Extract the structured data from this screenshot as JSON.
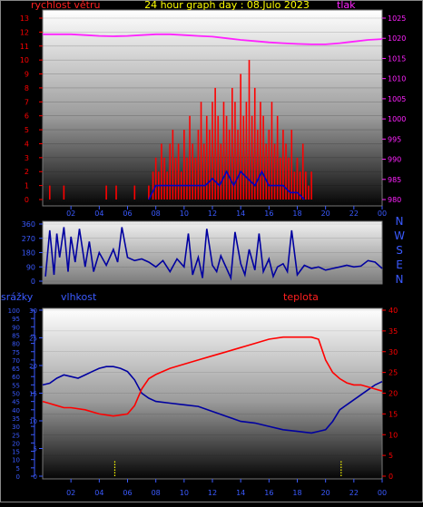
{
  "colors": {
    "background": "#000000",
    "frame": "#888888",
    "title": "#ffff00",
    "wind": "#ff0000",
    "gust": "#ff0000",
    "pressure": "#ff22ff",
    "direction_line": "#0000a0",
    "dir_labels": "#3a5aff",
    "humidity": "#0000a0",
    "temperature": "#ff0000",
    "rain_axis": "#3a5aff",
    "hum_axis": "#3a5aff",
    "rain_marks": "#ffff00"
  },
  "chart_data": [
    {
      "type": "line",
      "id": "wind_pressure",
      "title": "24 hour graph day : 08.Julo 2023",
      "left_axis_label": "rychlost větru",
      "right_axis_label": "tlak",
      "x_ticks": [
        "02",
        "04",
        "06",
        "08",
        "10",
        "12",
        "14",
        "16",
        "18",
        "20",
        "22",
        "00"
      ],
      "x_range_hours": [
        0,
        24
      ],
      "ylim_left": [
        0,
        13
      ],
      "left_ticks": [
        0,
        1,
        2,
        3,
        4,
        5,
        6,
        7,
        8,
        9,
        10,
        11,
        12,
        13
      ],
      "ylim_right": [
        980,
        1025
      ],
      "right_ticks": [
        980,
        985,
        990,
        995,
        1000,
        1005,
        1010,
        1015,
        1020,
        1025
      ],
      "series": [
        {
          "axis": "left",
          "style": "gust-bars",
          "x": [
            0.5,
            1.5,
            4.5,
            5.2,
            6.5,
            7.5,
            7.8,
            8.0,
            8.2,
            8.4,
            8.6,
            8.8,
            9.0,
            9.2,
            9.4,
            9.6,
            9.8,
            10.0,
            10.2,
            10.4,
            10.6,
            10.8,
            11.0,
            11.2,
            11.4,
            11.6,
            11.8,
            12.0,
            12.2,
            12.4,
            12.6,
            12.8,
            13.0,
            13.2,
            13.4,
            13.6,
            13.8,
            14.0,
            14.2,
            14.4,
            14.6,
            14.8,
            15.0,
            15.2,
            15.4,
            15.6,
            15.8,
            16.0,
            16.2,
            16.4,
            16.6,
            16.8,
            17.0,
            17.2,
            17.4,
            17.6,
            17.8,
            18.0,
            18.2,
            18.4,
            18.6,
            18.8,
            19.0
          ],
          "values": [
            1,
            1,
            1,
            1,
            1,
            1,
            2,
            3,
            2,
            4,
            3,
            2,
            4,
            5,
            3,
            4,
            2,
            5,
            3,
            6,
            4,
            3,
            5,
            7,
            4,
            6,
            5,
            7,
            8,
            6,
            4,
            7,
            6,
            5,
            8,
            7,
            5,
            9,
            6,
            7,
            10,
            6,
            8,
            5,
            7,
            6,
            4,
            5,
            7,
            4,
            6,
            3,
            5,
            4,
            3,
            5,
            2,
            3,
            2,
            4,
            2,
            1,
            2
          ]
        },
        {
          "axis": "left",
          "style": "speed-line",
          "x": [
            7.5,
            8.0,
            9.0,
            10.0,
            11.0,
            11.5,
            12.0,
            12.5,
            13.0,
            13.5,
            14.0,
            14.5,
            15.0,
            15.5,
            16.0,
            16.5,
            17.0,
            17.5,
            18.0,
            18.5
          ],
          "values": [
            0,
            1,
            1,
            1,
            1,
            1,
            1.5,
            1,
            2,
            1,
            2,
            1.5,
            1,
            2,
            1,
            1,
            1,
            0.5,
            0.5,
            0
          ]
        },
        {
          "axis": "right",
          "style": "pressure",
          "x": [
            0,
            1,
            2,
            3,
            4,
            5,
            6,
            7,
            8,
            9,
            10,
            11,
            12,
            13,
            14,
            15,
            16,
            17,
            18,
            19,
            20,
            21,
            22,
            23,
            24
          ],
          "values": [
            1021,
            1021,
            1021,
            1020.8,
            1020.6,
            1020.5,
            1020.6,
            1020.8,
            1021,
            1021,
            1020.8,
            1020.6,
            1020.4,
            1020,
            1019.6,
            1019.3,
            1019,
            1018.8,
            1018.6,
            1018.5,
            1018.5,
            1018.8,
            1019.2,
            1019.6,
            1019.8
          ]
        }
      ]
    },
    {
      "type": "line",
      "id": "wind_direction",
      "x_range_hours": [
        0,
        24
      ],
      "ylim": [
        0,
        360
      ],
      "y_ticks": [
        0,
        90,
        180,
        270,
        360
      ],
      "y_tick_labels": [
        "0",
        "90",
        "180",
        "270",
        "360"
      ],
      "direction_labels": [
        "N",
        "W",
        "S",
        "E",
        "N"
      ],
      "series": [
        {
          "x": [
            0.2,
            0.5,
            0.8,
            1.0,
            1.2,
            1.5,
            1.8,
            2.0,
            2.3,
            2.6,
            3.0,
            3.3,
            3.6,
            4.0,
            4.5,
            5.0,
            5.3,
            5.6,
            6.0,
            6.5,
            7.0,
            7.5,
            8.0,
            8.5,
            9.0,
            9.5,
            10.0,
            10.3,
            10.6,
            11.0,
            11.3,
            11.6,
            12.0,
            12.3,
            12.6,
            13.0,
            13.3,
            13.6,
            14.0,
            14.3,
            14.6,
            15.0,
            15.3,
            15.6,
            16.0,
            16.3,
            16.6,
            17.0,
            17.3,
            17.6,
            18.0,
            18.5,
            19.0,
            19.5,
            20.0,
            20.5,
            21.0,
            21.5,
            22.0,
            22.5,
            23.0,
            23.5,
            24.0
          ],
          "values": [
            30,
            320,
            40,
            300,
            150,
            340,
            60,
            280,
            120,
            330,
            90,
            250,
            60,
            180,
            100,
            200,
            120,
            340,
            150,
            130,
            140,
            120,
            90,
            130,
            60,
            140,
            90,
            300,
            40,
            150,
            20,
            330,
            100,
            60,
            160,
            80,
            20,
            310,
            110,
            40,
            200,
            70,
            300,
            60,
            140,
            30,
            90,
            110,
            60,
            320,
            40,
            100,
            80,
            90,
            70,
            80,
            90,
            100,
            90,
            95,
            130,
            120,
            80
          ]
        }
      ]
    },
    {
      "type": "line",
      "id": "humidity_temperature",
      "labels": {
        "rain": "srážky",
        "humidity": "vlhkost",
        "temperature": "teplota"
      },
      "x_ticks": [
        "02",
        "04",
        "06",
        "08",
        "10",
        "12",
        "14",
        "16",
        "18",
        "20",
        "22",
        "00"
      ],
      "x_range_hours": [
        0,
        24
      ],
      "rain_axis": {
        "ylim": [
          0,
          100
        ],
        "ticks": [
          0,
          5,
          10,
          15,
          20,
          25,
          30,
          35,
          40,
          45,
          50,
          55,
          60,
          65,
          70,
          75,
          80,
          85,
          90,
          95,
          100
        ]
      },
      "hum_axis": {
        "ylim": [
          0,
          30
        ],
        "ticks": [
          0,
          5,
          10,
          15,
          20,
          25,
          30
        ]
      },
      "temp_axis": {
        "ylim": [
          0,
          40
        ],
        "ticks": [
          0,
          5,
          10,
          15,
          20,
          25,
          30,
          35,
          40
        ]
      },
      "series": [
        {
          "name": "vlhkost",
          "axis": "rain",
          "x": [
            0,
            0.5,
            1,
            1.5,
            2,
            2.5,
            3,
            3.5,
            4,
            4.5,
            5,
            5.5,
            6,
            6.5,
            7,
            7.5,
            8,
            9,
            10,
            11,
            12,
            13,
            14,
            15,
            16,
            17,
            18,
            19,
            19.5,
            20,
            20.5,
            21,
            21.5,
            22,
            22.5,
            23,
            23.5,
            24
          ],
          "values": [
            55,
            56,
            59,
            61,
            60,
            59,
            61,
            63,
            65,
            66,
            66,
            65,
            63,
            58,
            50,
            47,
            45,
            44,
            43,
            42,
            39,
            36,
            33,
            32,
            30,
            28,
            27,
            26,
            27,
            28,
            33,
            40,
            43,
            46,
            49,
            52,
            55,
            57
          ]
        },
        {
          "name": "teplota",
          "axis": "temp",
          "x": [
            0,
            0.5,
            1,
            1.5,
            2,
            3,
            4,
            5,
            6,
            6.5,
            7,
            7.5,
            8,
            9,
            10,
            11,
            12,
            13,
            14,
            15,
            16,
            17,
            18,
            19,
            19.5,
            20,
            20.5,
            21,
            21.5,
            22,
            22.5,
            23,
            23.5,
            24
          ],
          "values": [
            18,
            17.5,
            17,
            16.5,
            16.5,
            16,
            15,
            14.5,
            15,
            17,
            21,
            23.5,
            24.5,
            26,
            27,
            28,
            29,
            30,
            31,
            32,
            33,
            33.5,
            33.5,
            33.5,
            33,
            28,
            25,
            23.5,
            22.5,
            22,
            22,
            21.5,
            21,
            20.5
          ]
        },
        {
          "name": "srážky",
          "axis": "rain",
          "style": "dotted-bars",
          "x": [
            5.1,
            21.1
          ],
          "values": [
            9,
            9
          ]
        }
      ]
    }
  ]
}
